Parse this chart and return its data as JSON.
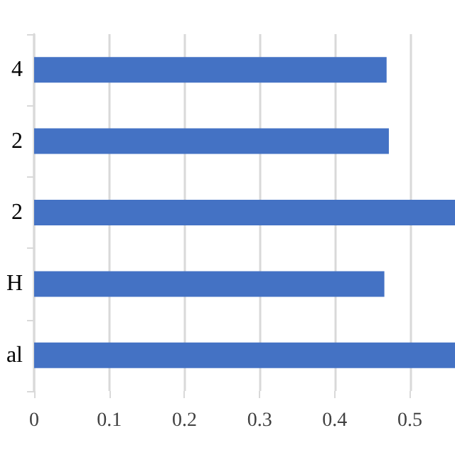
{
  "chart_data": {
    "type": "bar",
    "orientation": "horizontal",
    "categories": [
      "4",
      "2",
      "2",
      "H",
      "al"
    ],
    "values": [
      0.469,
      0.472,
      0.56,
      0.466,
      0.56
    ],
    "color": "#4472c4",
    "xlim": [
      0,
      0.56
    ],
    "xticks": [
      0,
      0.1,
      0.2,
      0.3,
      0.4,
      0.5
    ],
    "grid": "x"
  }
}
